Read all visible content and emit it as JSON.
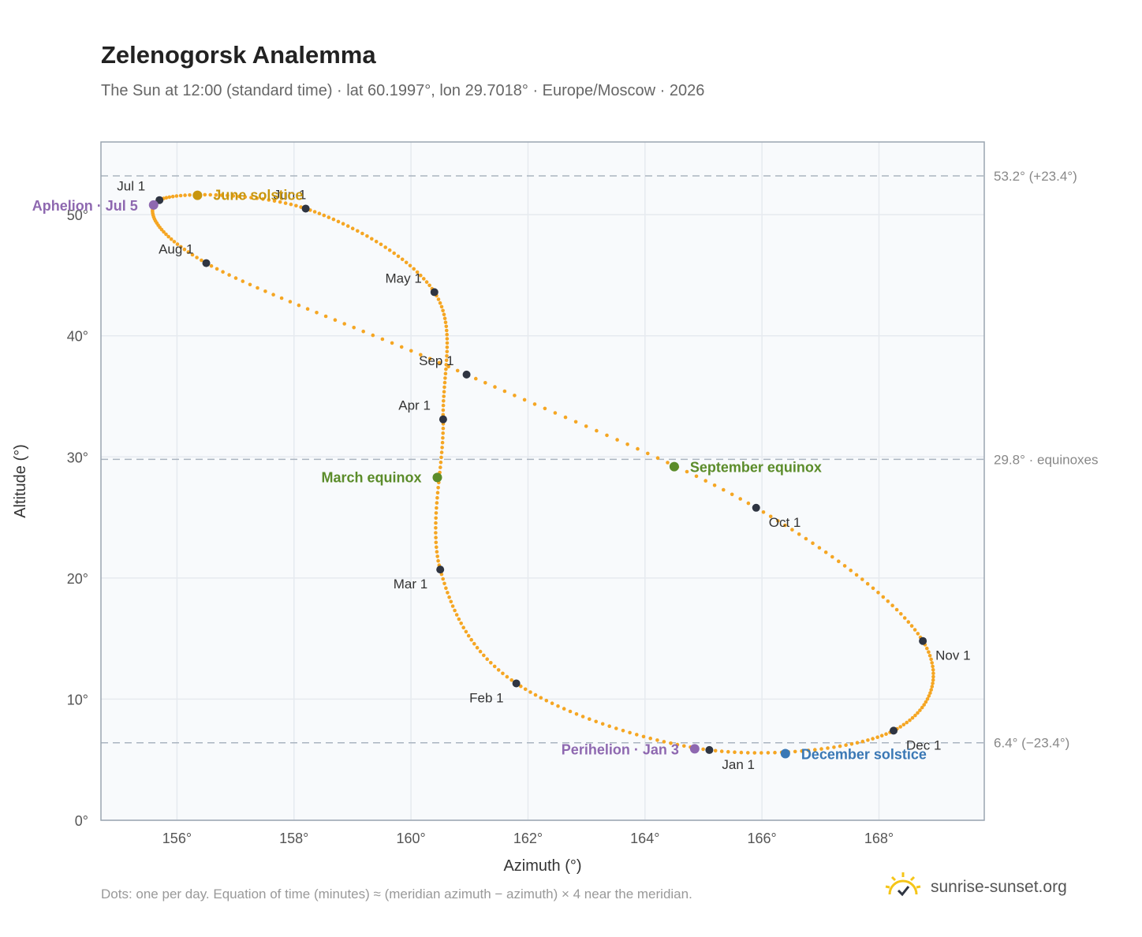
{
  "title": "Zelenogorsk Analemma",
  "subtitle": "The Sun at 12:00 (standard time) · lat 60.1997°, lon 29.7018° · Europe/Moscow · 2026",
  "footnote": "Dots: one per day. Equation of time (minutes) ≈ (meridian azimuth − azimuth) × 4 near the meridian.",
  "brand": {
    "text": "sunrise-sunset.org",
    "icon": "sun-logo-icon"
  },
  "colors": {
    "curve": "#f5a623",
    "month_marker": "#2f3542",
    "solstice_june": "#c8960e",
    "equinox": "#5b8c2a",
    "solstice_december": "#3a78b5",
    "apsis": "#8e68b0",
    "plot_bg": "#f8fafc",
    "grid": "#e6eaef",
    "reference_line": "#aab4c0"
  },
  "chart_data": {
    "type": "scatter",
    "xlabel": "Azimuth (°)",
    "ylabel": "Altitude (°)",
    "xlim": [
      154.7,
      169.8
    ],
    "ylim": [
      0,
      56
    ],
    "xticks": [
      {
        "value": 156,
        "label": "156°"
      },
      {
        "value": 158,
        "label": "158°"
      },
      {
        "value": 160,
        "label": "160°"
      },
      {
        "value": 162,
        "label": "162°"
      },
      {
        "value": 164,
        "label": "164°"
      },
      {
        "value": 166,
        "label": "166°"
      },
      {
        "value": 168,
        "label": "168°"
      }
    ],
    "yticks": [
      {
        "value": 0,
        "label": "0°"
      },
      {
        "value": 10,
        "label": "10°"
      },
      {
        "value": 20,
        "label": "20°"
      },
      {
        "value": 30,
        "label": "30°"
      },
      {
        "value": 40,
        "label": "40°"
      },
      {
        "value": 50,
        "label": "50°"
      }
    ],
    "grid": true,
    "reference_lines": [
      {
        "y": 53.2,
        "label": "53.2° (+23.4°)"
      },
      {
        "y": 29.8,
        "label": "29.8° · equinoxes"
      },
      {
        "y": 6.4,
        "label": "6.4° (−23.4°)"
      }
    ],
    "curve_anchors": [
      {
        "az": 165.1,
        "alt": 5.8
      },
      {
        "az": 161.8,
        "alt": 11.3
      },
      {
        "az": 160.5,
        "alt": 20.7
      },
      {
        "az": 160.55,
        "alt": 33.1
      },
      {
        "az": 160.4,
        "alt": 43.6
      },
      {
        "az": 158.2,
        "alt": 50.5
      },
      {
        "az": 155.7,
        "alt": 51.2
      },
      {
        "az": 156.5,
        "alt": 46.0
      },
      {
        "az": 160.95,
        "alt": 36.8
      },
      {
        "az": 165.9,
        "alt": 25.8
      },
      {
        "az": 168.75,
        "alt": 14.8
      },
      {
        "az": 168.25,
        "alt": 7.4
      }
    ],
    "month_points": [
      {
        "label": "Jan 1",
        "az": 165.1,
        "alt": 5.8
      },
      {
        "label": "Feb 1",
        "az": 161.8,
        "alt": 11.3
      },
      {
        "label": "Mar 1",
        "az": 160.5,
        "alt": 20.7
      },
      {
        "label": "Apr 1",
        "az": 160.55,
        "alt": 33.1
      },
      {
        "label": "May 1",
        "az": 160.4,
        "alt": 43.6
      },
      {
        "label": "Jun 1",
        "az": 158.2,
        "alt": 50.5
      },
      {
        "label": "Jul 1",
        "az": 155.7,
        "alt": 51.2
      },
      {
        "label": "Aug 1",
        "az": 156.5,
        "alt": 46.0
      },
      {
        "label": "Sep 1",
        "az": 160.95,
        "alt": 36.8
      },
      {
        "label": "Oct 1",
        "az": 165.9,
        "alt": 25.8
      },
      {
        "label": "Nov 1",
        "az": 168.75,
        "alt": 14.8
      },
      {
        "label": "Dec 1",
        "az": 168.25,
        "alt": 7.4
      }
    ],
    "events": [
      {
        "label": "June solstice",
        "az": 156.35,
        "alt": 51.6,
        "color": "#c8960e"
      },
      {
        "label": "March equinox",
        "az": 160.45,
        "alt": 28.3,
        "color": "#5b8c2a"
      },
      {
        "label": "September equinox",
        "az": 164.5,
        "alt": 29.2,
        "color": "#5b8c2a"
      },
      {
        "label": "December solstice",
        "az": 166.4,
        "alt": 5.5,
        "color": "#3a78b5"
      },
      {
        "label": "Aphelion · Jul 5",
        "az": 155.6,
        "alt": 50.8,
        "color": "#8e68b0"
      },
      {
        "label": "Perihelion · Jan 3",
        "az": 164.85,
        "alt": 5.9,
        "color": "#8e68b0"
      }
    ]
  }
}
